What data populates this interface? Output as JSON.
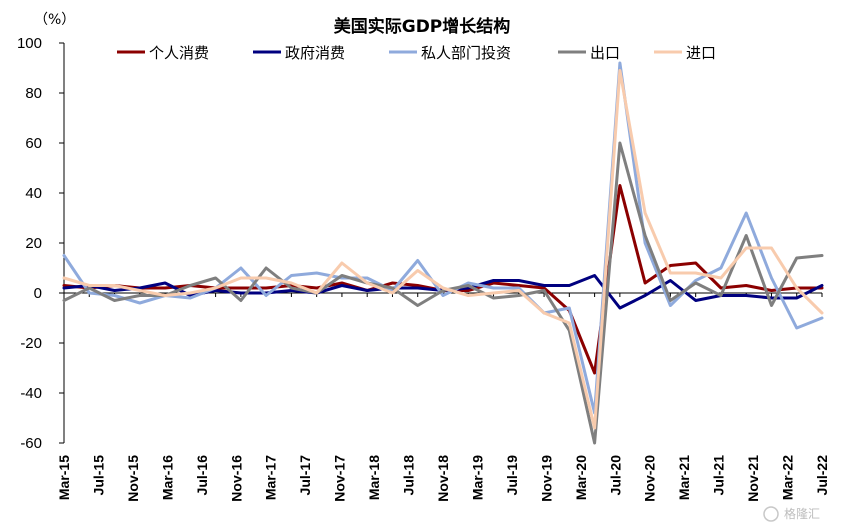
{
  "chart_data": {
    "type": "line",
    "title": "美国实际GDP增长结构",
    "unit_label": "（%）",
    "ylim": [
      -60,
      100
    ],
    "yticks": [
      -60,
      -40,
      -20,
      0,
      20,
      40,
      60,
      80,
      100
    ],
    "x": [
      "Mar-15",
      "Jun-15",
      "Sep-15",
      "Dec-15",
      "Mar-16",
      "Jun-16",
      "Sep-16",
      "Dec-16",
      "Mar-17",
      "Jun-17",
      "Sep-17",
      "Dec-17",
      "Mar-18",
      "Jun-18",
      "Sep-18",
      "Dec-18",
      "Mar-19",
      "Jun-19",
      "Sep-19",
      "Dec-19",
      "Mar-20",
      "Jun-20",
      "Sep-20",
      "Dec-20",
      "Mar-21",
      "Jun-21",
      "Sep-21",
      "Dec-21",
      "Mar-22",
      "Jun-22",
      "Sep-22"
    ],
    "x_tick_labels": [
      "Mar-15",
      "Jul-15",
      "Nov-15",
      "Mar-16",
      "Jul-16",
      "Nov-16",
      "Mar-17",
      "Jul-17",
      "Nov-17",
      "Mar-18",
      "Jul-18",
      "Nov-18",
      "Mar-19",
      "Jul-19",
      "Nov-19",
      "Mar-20",
      "Jul-20",
      "Nov-20",
      "Mar-21",
      "Jul-21",
      "Nov-21",
      "Mar-22",
      "Jul-22"
    ],
    "legend_position": "top",
    "grid": false,
    "series": [
      {
        "name": "个人消费",
        "color": "#8B0000",
        "values": [
          3,
          2,
          3,
          2,
          2,
          3,
          2,
          2,
          2,
          3,
          2,
          4,
          1,
          4,
          3,
          1,
          1,
          4,
          3,
          2,
          -7,
          -32,
          43,
          4,
          11,
          12,
          2,
          3,
          1,
          2,
          2
        ]
      },
      {
        "name": "政府消费",
        "color": "#00007F",
        "values": [
          2,
          3,
          1,
          2,
          4,
          -1,
          1,
          0,
          0,
          1,
          0,
          3,
          1,
          2,
          2,
          1,
          2,
          5,
          5,
          3,
          3,
          7,
          -6,
          -1,
          5,
          -3,
          -1,
          -1,
          -2,
          -2,
          3
        ]
      },
      {
        "name": "私人部门投资",
        "color": "#8FAADC",
        "values": [
          15,
          0,
          -1,
          -4,
          -1,
          -2,
          2,
          10,
          -1,
          7,
          8,
          6,
          6,
          1,
          13,
          -1,
          4,
          2,
          2,
          -8,
          -6,
          -48,
          92,
          20,
          -5,
          5,
          10,
          32,
          6,
          -14,
          -10
        ]
      },
      {
        "name": "出口",
        "color": "#7F7F7F",
        "values": [
          -3,
          2,
          -3,
          -1,
          -1,
          3,
          6,
          -3,
          10,
          2,
          0,
          7,
          4,
          2,
          -5,
          1,
          3,
          -2,
          -1,
          1,
          -15,
          -60,
          60,
          23,
          -3,
          4,
          -1,
          23,
          -5,
          14,
          15
        ]
      },
      {
        "name": "进口",
        "color": "#F8CBAD",
        "values": [
          6,
          3,
          3,
          1,
          -1,
          0,
          2,
          6,
          6,
          4,
          0,
          12,
          4,
          0,
          9,
          2,
          -1,
          0,
          1,
          -8,
          -12,
          -54,
          89,
          32,
          8,
          8,
          6,
          18,
          18,
          2,
          -8
        ]
      }
    ]
  },
  "watermark": "格隆汇"
}
